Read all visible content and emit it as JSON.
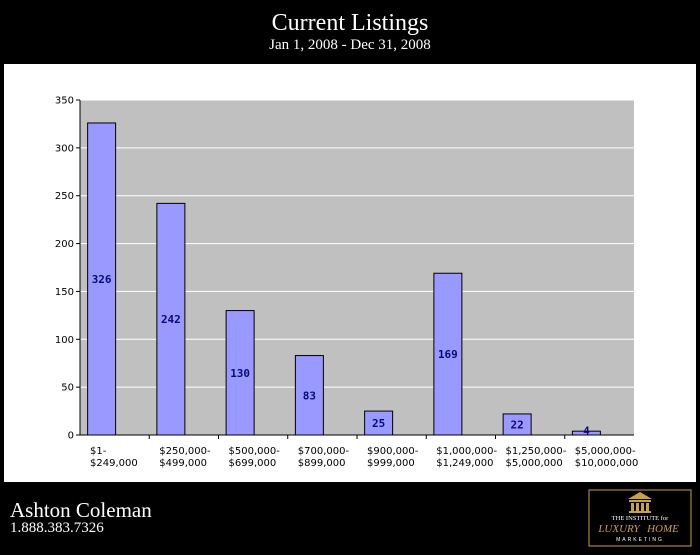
{
  "header": {
    "title": "Current Listings",
    "subtitle": "Jan 1, 2008 - Dec 31, 2008"
  },
  "footer": {
    "name": "Ashton Coleman",
    "phone": "1.888.383.7326"
  },
  "logo": {
    "line1": "THE INSTITUTE for",
    "line2a": "LUXURY",
    "line2b": "HOME",
    "line3": "MARKETING",
    "color": "#c9a04a"
  },
  "chart_data": {
    "type": "bar",
    "categories": [
      [
        "$1-",
        "$249,000"
      ],
      [
        "$250,000-",
        "$499,000"
      ],
      [
        "$500,000-",
        "$699,000"
      ],
      [
        "$700,000-",
        "$899,000"
      ],
      [
        "$900,000-",
        "$999,000"
      ],
      [
        "$1,000,000-",
        "$1,249,000"
      ],
      [
        "$1,250,000-",
        "$5,000,000"
      ],
      [
        "$5,000,000-",
        "$10,000,000"
      ]
    ],
    "values": [
      326,
      242,
      130,
      83,
      25,
      169,
      22,
      4
    ],
    "ylim": [
      0,
      350
    ],
    "yticks": [
      0,
      50,
      100,
      150,
      200,
      250,
      300,
      350
    ],
    "grid": true,
    "colors": {
      "bar": "#9999ff",
      "plot_bg": "#c0c0c0",
      "grid": "#ffffff",
      "label": "#0a0a80"
    }
  }
}
